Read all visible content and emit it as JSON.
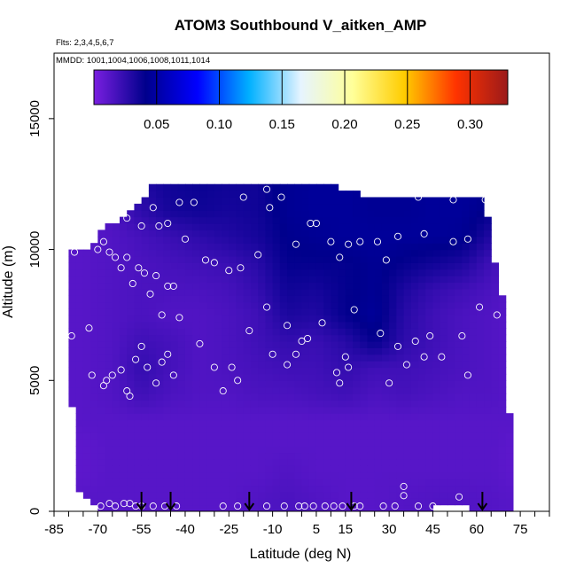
{
  "chart_data": {
    "type": "heatmap",
    "title": "ATOM3 Southbound V_aitken_AMP",
    "subtitle_flights": "Flts: 2,3,4,5,6,7",
    "subtitle_dates": "MMDD: 1001,1004,1006,1008,1011,1014",
    "xlabel": "Latitude (deg N)",
    "ylabel": "Altitude (m)",
    "xlim": [
      -85,
      85
    ],
    "ylim": [
      0,
      17500
    ],
    "x_ticks": [
      -85,
      -70,
      -55,
      -40,
      -25,
      -10,
      5,
      15,
      30,
      45,
      60,
      75
    ],
    "y_ticks": [
      0,
      5000,
      10000,
      15000
    ],
    "colorbar": {
      "range": [
        0.0,
        0.33
      ],
      "tick_values": [
        0.05,
        0.1,
        0.15,
        0.2,
        0.25,
        0.3
      ],
      "tick_labels": [
        "0.05",
        "0.10",
        "0.15",
        "0.20",
        "0.25",
        "0.30"
      ],
      "colors": [
        "#7a1fe0",
        "#00008c",
        "#0000ff",
        "#00b0ff",
        "#e6f4ff",
        "#ffff99",
        "#ffcc00",
        "#ff3300",
        "#9b1a1a"
      ]
    },
    "field_grid": {
      "lat": [
        -75,
        -65,
        -55,
        -45,
        -35,
        -25,
        -15,
        -5,
        5,
        15,
        25,
        35,
        45,
        55,
        65,
        72
      ],
      "alt": [
        500,
        1500,
        2500,
        3500,
        4500,
        5500,
        6500,
        7500,
        8500,
        9500,
        10500,
        11500,
        12500
      ],
      "values": [
        [
          0.012,
          0.012,
          0.012,
          0.012,
          0.012,
          0.012,
          0.014,
          0.016,
          0.014,
          0.012,
          0.012,
          0.013,
          0.014,
          0.014,
          0.013,
          0.012
        ],
        [
          0.01,
          0.012,
          0.012,
          0.012,
          0.012,
          0.012,
          0.012,
          0.014,
          0.012,
          0.012,
          0.012,
          0.012,
          0.012,
          0.012,
          0.012,
          0.01
        ],
        [
          0.01,
          0.012,
          0.012,
          0.012,
          0.012,
          0.012,
          0.012,
          0.012,
          0.012,
          0.012,
          0.012,
          0.012,
          0.012,
          0.012,
          0.012,
          0.01
        ],
        [
          0.012,
          0.012,
          0.012,
          0.012,
          0.012,
          0.012,
          0.012,
          0.012,
          0.012,
          0.012,
          0.012,
          0.012,
          0.012,
          0.012,
          0.012,
          0.012
        ],
        [
          0.012,
          0.014,
          0.02,
          0.016,
          0.014,
          0.014,
          0.016,
          0.016,
          0.018,
          0.02,
          0.016,
          0.018,
          0.016,
          0.014,
          0.014,
          0.012
        ],
        [
          0.012,
          0.014,
          0.024,
          0.018,
          0.014,
          0.016,
          0.018,
          0.02,
          0.02,
          0.024,
          0.02,
          0.02,
          0.018,
          0.016,
          0.014,
          0.012
        ],
        [
          0.012,
          0.014,
          0.02,
          0.018,
          0.014,
          0.016,
          0.02,
          0.024,
          0.022,
          0.028,
          0.04,
          0.026,
          0.02,
          0.016,
          0.014,
          0.012
        ],
        [
          0.012,
          0.014,
          0.016,
          0.014,
          0.014,
          0.016,
          0.02,
          0.032,
          0.03,
          0.04,
          0.046,
          0.028,
          0.02,
          0.016,
          0.014,
          0.012
        ],
        [
          0.012,
          0.014,
          0.016,
          0.016,
          0.016,
          0.018,
          0.024,
          0.036,
          0.034,
          0.04,
          0.044,
          0.032,
          0.024,
          0.02,
          0.016,
          0.012
        ],
        [
          0.012,
          0.014,
          0.016,
          0.018,
          0.02,
          0.022,
          0.028,
          0.04,
          0.04,
          0.04,
          0.044,
          0.04,
          0.036,
          0.032,
          0.02,
          0.014
        ],
        [
          0.012,
          0.014,
          0.018,
          0.022,
          0.026,
          0.03,
          0.034,
          0.042,
          0.044,
          0.046,
          0.046,
          0.046,
          0.046,
          0.044,
          0.03,
          0.016
        ],
        [
          0.014,
          0.016,
          0.026,
          0.034,
          0.036,
          0.034,
          0.036,
          0.044,
          0.046,
          0.046,
          0.044,
          0.044,
          0.046,
          0.046,
          0.04,
          0.02
        ],
        [
          0.016,
          0.018,
          0.03,
          0.036,
          0.038,
          0.036,
          0.036,
          0.044,
          0.046,
          0.046,
          0.044,
          0.044,
          0.046,
          0.046,
          0.044,
          0.024
        ]
      ]
    },
    "coverage_top_alt": [
      {
        "lat": -80,
        "alt": 9900
      },
      {
        "lat": -75,
        "alt": 9900
      },
      {
        "lat": -70,
        "alt": 10500
      },
      {
        "lat": -65,
        "alt": 11000
      },
      {
        "lat": -57,
        "alt": 11600
      },
      {
        "lat": -52,
        "alt": 12400
      },
      {
        "lat": 12,
        "alt": 12400
      },
      {
        "lat": 25,
        "alt": 12000
      },
      {
        "lat": 60,
        "alt": 12000
      },
      {
        "lat": 63,
        "alt": 11800
      },
      {
        "lat": 67,
        "alt": 9000
      },
      {
        "lat": 70,
        "alt": 7600
      },
      {
        "lat": 72,
        "alt": 1400
      }
    ],
    "coverage_bottom_alt": [
      {
        "lat": -69,
        "alt": 0
      },
      {
        "lat": 45,
        "alt": 0
      },
      {
        "lat": 46,
        "alt": 350
      },
      {
        "lat": 58,
        "alt": 350
      },
      {
        "lat": 59,
        "alt": 0
      }
    ],
    "coverage_left_alt": [
      {
        "lat": -80,
        "alt": 7200
      },
      {
        "lat": -78,
        "alt": 2000
      },
      {
        "lat": -77,
        "alt": 900
      },
      {
        "lat": -73,
        "alt": 300
      },
      {
        "lat": -69,
        "alt": 0
      }
    ],
    "sample_points": [
      [
        -69,
        200
      ],
      [
        -66,
        300
      ],
      [
        -64,
        200
      ],
      [
        -61,
        300
      ],
      [
        -59,
        300
      ],
      [
        -57,
        200
      ],
      [
        -55,
        200
      ],
      [
        -51,
        200
      ],
      [
        -47,
        200
      ],
      [
        -43,
        200
      ],
      [
        -27,
        200
      ],
      [
        -22,
        200
      ],
      [
        -12,
        200
      ],
      [
        -6,
        200
      ],
      [
        -1,
        200
      ],
      [
        1,
        200
      ],
      [
        4,
        200
      ],
      [
        8,
        200
      ],
      [
        11,
        200
      ],
      [
        14,
        200
      ],
      [
        18,
        200
      ],
      [
        20,
        200
      ],
      [
        28,
        200
      ],
      [
        32,
        200
      ],
      [
        35,
        600
      ],
      [
        35,
        950
      ],
      [
        40,
        200
      ],
      [
        45,
        200
      ],
      [
        54,
        550
      ],
      [
        -72,
        5200
      ],
      [
        -68,
        4800
      ],
      [
        -67,
        5000
      ],
      [
        -65,
        5200
      ],
      [
        -62,
        5400
      ],
      [
        -60,
        4600
      ],
      [
        -59,
        4400
      ],
      [
        -57,
        5800
      ],
      [
        -55,
        6300
      ],
      [
        -53,
        5500
      ],
      [
        -50,
        4900
      ],
      [
        -48,
        5700
      ],
      [
        -46,
        6000
      ],
      [
        -44,
        5200
      ],
      [
        -35,
        6400
      ],
      [
        -30,
        5500
      ],
      [
        -27,
        4600
      ],
      [
        -24,
        5500
      ],
      [
        -22,
        5000
      ],
      [
        -18,
        6900
      ],
      [
        -10,
        6000
      ],
      [
        -5,
        5600
      ],
      [
        -2,
        6000
      ],
      [
        0,
        6500
      ],
      [
        2,
        6600
      ],
      [
        7,
        7200
      ],
      [
        12,
        5300
      ],
      [
        13,
        4900
      ],
      [
        15,
        5900
      ],
      [
        16,
        5500
      ],
      [
        27,
        6800
      ],
      [
        30,
        4900
      ],
      [
        33,
        6300
      ],
      [
        36,
        5600
      ],
      [
        39,
        6500
      ],
      [
        42,
        5900
      ],
      [
        44,
        6700
      ],
      [
        48,
        5900
      ],
      [
        55,
        6700
      ],
      [
        57,
        5200
      ],
      [
        61,
        7800
      ],
      [
        67,
        7500
      ],
      [
        -82,
        9900
      ],
      [
        -79,
        6700
      ],
      [
        -78,
        9900
      ],
      [
        -73,
        7000
      ],
      [
        -70,
        10000
      ],
      [
        -68,
        10300
      ],
      [
        -66,
        9900
      ],
      [
        -64,
        9700
      ],
      [
        -62,
        9300
      ],
      [
        -60,
        9700
      ],
      [
        -58,
        8700
      ],
      [
        -56,
        9300
      ],
      [
        -54,
        9100
      ],
      [
        -52,
        8300
      ],
      [
        -50,
        9000
      ],
      [
        -48,
        7500
      ],
      [
        -46,
        8600
      ],
      [
        -44,
        8600
      ],
      [
        -42,
        7400
      ],
      [
        -40,
        10400
      ],
      [
        -33,
        9600
      ],
      [
        -30,
        9500
      ],
      [
        -25,
        9200
      ],
      [
        -21,
        9300
      ],
      [
        -15,
        9800
      ],
      [
        -12,
        7800
      ],
      [
        -5,
        7100
      ],
      [
        -2,
        10200
      ],
      [
        3,
        11000
      ],
      [
        5,
        11000
      ],
      [
        10,
        10300
      ],
      [
        13,
        9700
      ],
      [
        16,
        10200
      ],
      [
        18,
        7700
      ],
      [
        20,
        10300
      ],
      [
        26,
        10300
      ],
      [
        29,
        9600
      ],
      [
        33,
        10500
      ],
      [
        42,
        10600
      ],
      [
        52,
        10300
      ],
      [
        57,
        10400
      ],
      [
        -85,
        9900
      ],
      [
        -60,
        11200
      ],
      [
        -55,
        10900
      ],
      [
        -51,
        11600
      ],
      [
        -49,
        10900
      ],
      [
        -46,
        11000
      ],
      [
        -42,
        11800
      ],
      [
        -37,
        11800
      ],
      [
        -20,
        12000
      ],
      [
        -11,
        11600
      ],
      [
        -7,
        12000
      ],
      [
        22,
        12400
      ],
      [
        40,
        12000
      ],
      [
        52,
        11900
      ],
      [
        63,
        11900
      ],
      [
        -12,
        12300
      ]
    ],
    "flight_marker_lats": [
      -55,
      -45,
      -18,
      17,
      62
    ]
  }
}
